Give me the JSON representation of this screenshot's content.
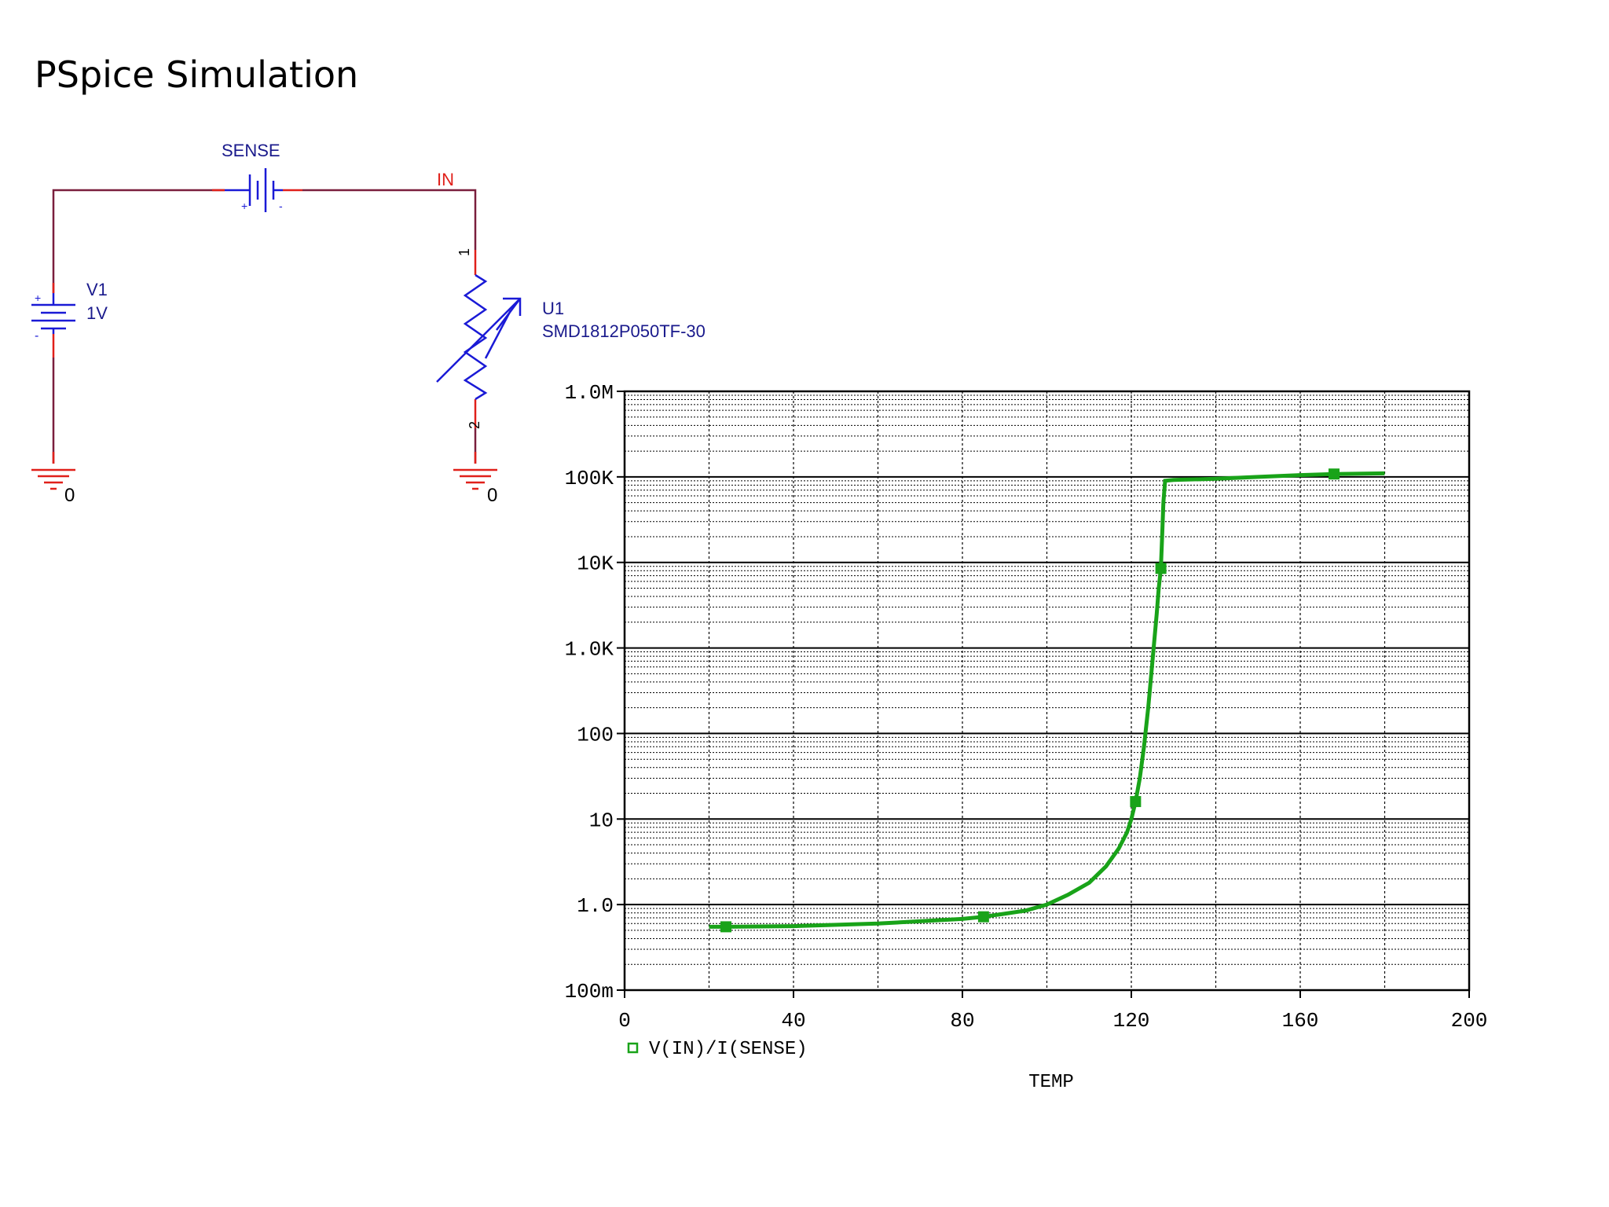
{
  "slide": {
    "title": "PSpice Simulation"
  },
  "schematic": {
    "sense_label": "SENSE",
    "net_in_label": "IN",
    "v1_name": "V1",
    "v1_value": "1V",
    "u1_name": "U1",
    "u1_part": "SMD1812P050TF-30",
    "pin1": "1",
    "pin2": "2",
    "ground_left": "0",
    "ground_right": "0",
    "plus": "+",
    "minus": "-"
  },
  "colors": {
    "wire": "#7a1f3d",
    "component": "#1a1ad6",
    "pin": "#e0201a",
    "label_blue": "#1a1a8c",
    "trace": "#19a319",
    "grid": "#000000"
  },
  "chart_data": {
    "type": "line",
    "xlabel": "TEMP",
    "xlim": [
      0,
      200
    ],
    "x_ticks": [
      "0",
      "40",
      "80",
      "120",
      "160",
      "200"
    ],
    "x_tick_values": [
      0,
      40,
      80,
      120,
      160,
      200
    ],
    "ylim": [
      0.1,
      1000000
    ],
    "y_scale": "log",
    "y_ticks": [
      "100m",
      "1.0",
      "10",
      "100",
      "1.0K",
      "10K",
      "100K",
      "1.0M"
    ],
    "y_tick_values": [
      0.1,
      1,
      10,
      100,
      1000,
      10000,
      100000,
      1000000
    ],
    "grid": true,
    "legend_position": "bottom-left",
    "series": [
      {
        "name": "V(IN)/I(SENSE)",
        "x": [
          20,
          24,
          40,
          60,
          80,
          85,
          95,
          100,
          105,
          110,
          114,
          117,
          119,
          120,
          121,
          122,
          123,
          124,
          125,
          126,
          126.5,
          127,
          127.3,
          127.6,
          128,
          130,
          140,
          150,
          160,
          168,
          180
        ],
        "y": [
          0.55,
          0.55,
          0.56,
          0.6,
          0.68,
          0.72,
          0.85,
          1.0,
          1.3,
          1.8,
          2.8,
          4.5,
          7.0,
          10,
          16,
          30,
          70,
          200,
          700,
          2500,
          5000,
          8500,
          20000,
          50000,
          90000,
          92000,
          95000,
          100000,
          105000,
          108000,
          110000
        ]
      }
    ],
    "marker_x": [
      24,
      85,
      121,
      127,
      168
    ]
  }
}
